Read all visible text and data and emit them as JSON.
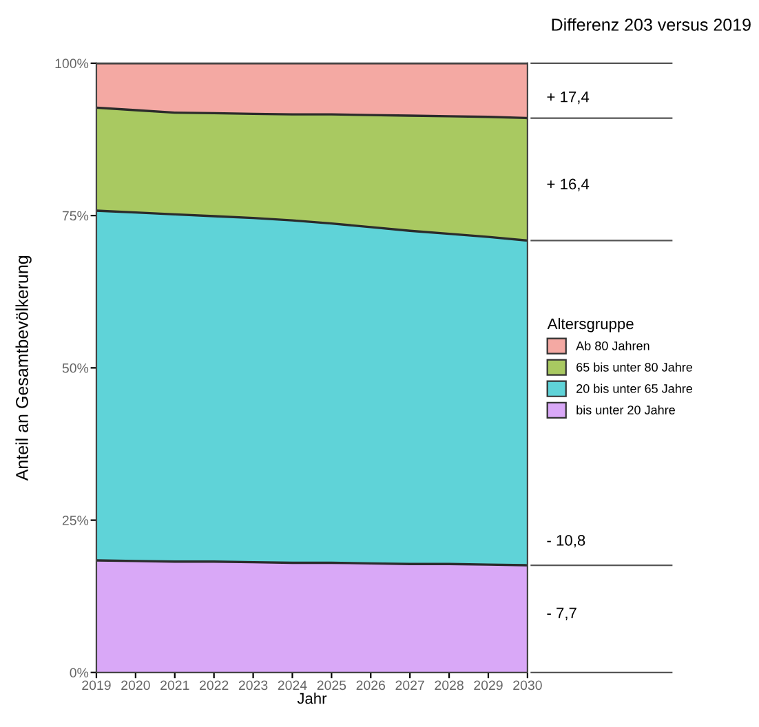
{
  "chart_data": {
    "type": "area",
    "stacked": true,
    "title": "Differenz 203 versus 2019",
    "xlabel": "Jahr",
    "ylabel": "Anteil an Gesamtbevölkerung",
    "legend_title": "Altersgruppe",
    "legend": "right",
    "grid": false,
    "x": [
      2019,
      2020,
      2021,
      2022,
      2023,
      2024,
      2025,
      2026,
      2027,
      2028,
      2029,
      2030
    ],
    "xlim": [
      2019,
      2030
    ],
    "xticks": [
      2019,
      2020,
      2021,
      2022,
      2023,
      2024,
      2025,
      2026,
      2027,
      2028,
      2029,
      2030
    ],
    "ylim": [
      0,
      100
    ],
    "yticks": [
      {
        "value": 0,
        "label": "0%"
      },
      {
        "value": 25,
        "label": "25%"
      },
      {
        "value": 50,
        "label": "50%"
      },
      {
        "value": 75,
        "label": "75%"
      },
      {
        "value": 100,
        "label": "100%"
      }
    ],
    "series": [
      {
        "name": "bis unter 20 Jahre",
        "color": "#d9a8f7",
        "values": [
          18.4,
          18.3,
          18.2,
          18.2,
          18.1,
          18.0,
          18.0,
          17.9,
          17.8,
          17.8,
          17.7,
          17.6
        ]
      },
      {
        "name": "20 bis unter 65 Jahre",
        "color": "#5fd3d8",
        "values": [
          57.4,
          57.2,
          57.0,
          56.7,
          56.5,
          56.2,
          55.7,
          55.2,
          54.7,
          54.2,
          53.8,
          53.3
        ]
      },
      {
        "name": "65 bis unter 80 Jahre",
        "color": "#a9c961",
        "values": [
          16.9,
          16.8,
          16.7,
          16.9,
          17.1,
          17.4,
          17.9,
          18.4,
          18.9,
          19.3,
          19.7,
          20.1
        ]
      },
      {
        "name": "Ab 80 Jahren",
        "color": "#f4a9a3",
        "values": [
          7.3,
          7.7,
          8.1,
          8.2,
          8.3,
          8.4,
          8.4,
          8.5,
          8.6,
          8.7,
          8.8,
          9.0
        ]
      }
    ],
    "annotations": [
      "+ 17,4",
      "+ 16,4",
      "- 10,8",
      "- 7,7"
    ]
  }
}
